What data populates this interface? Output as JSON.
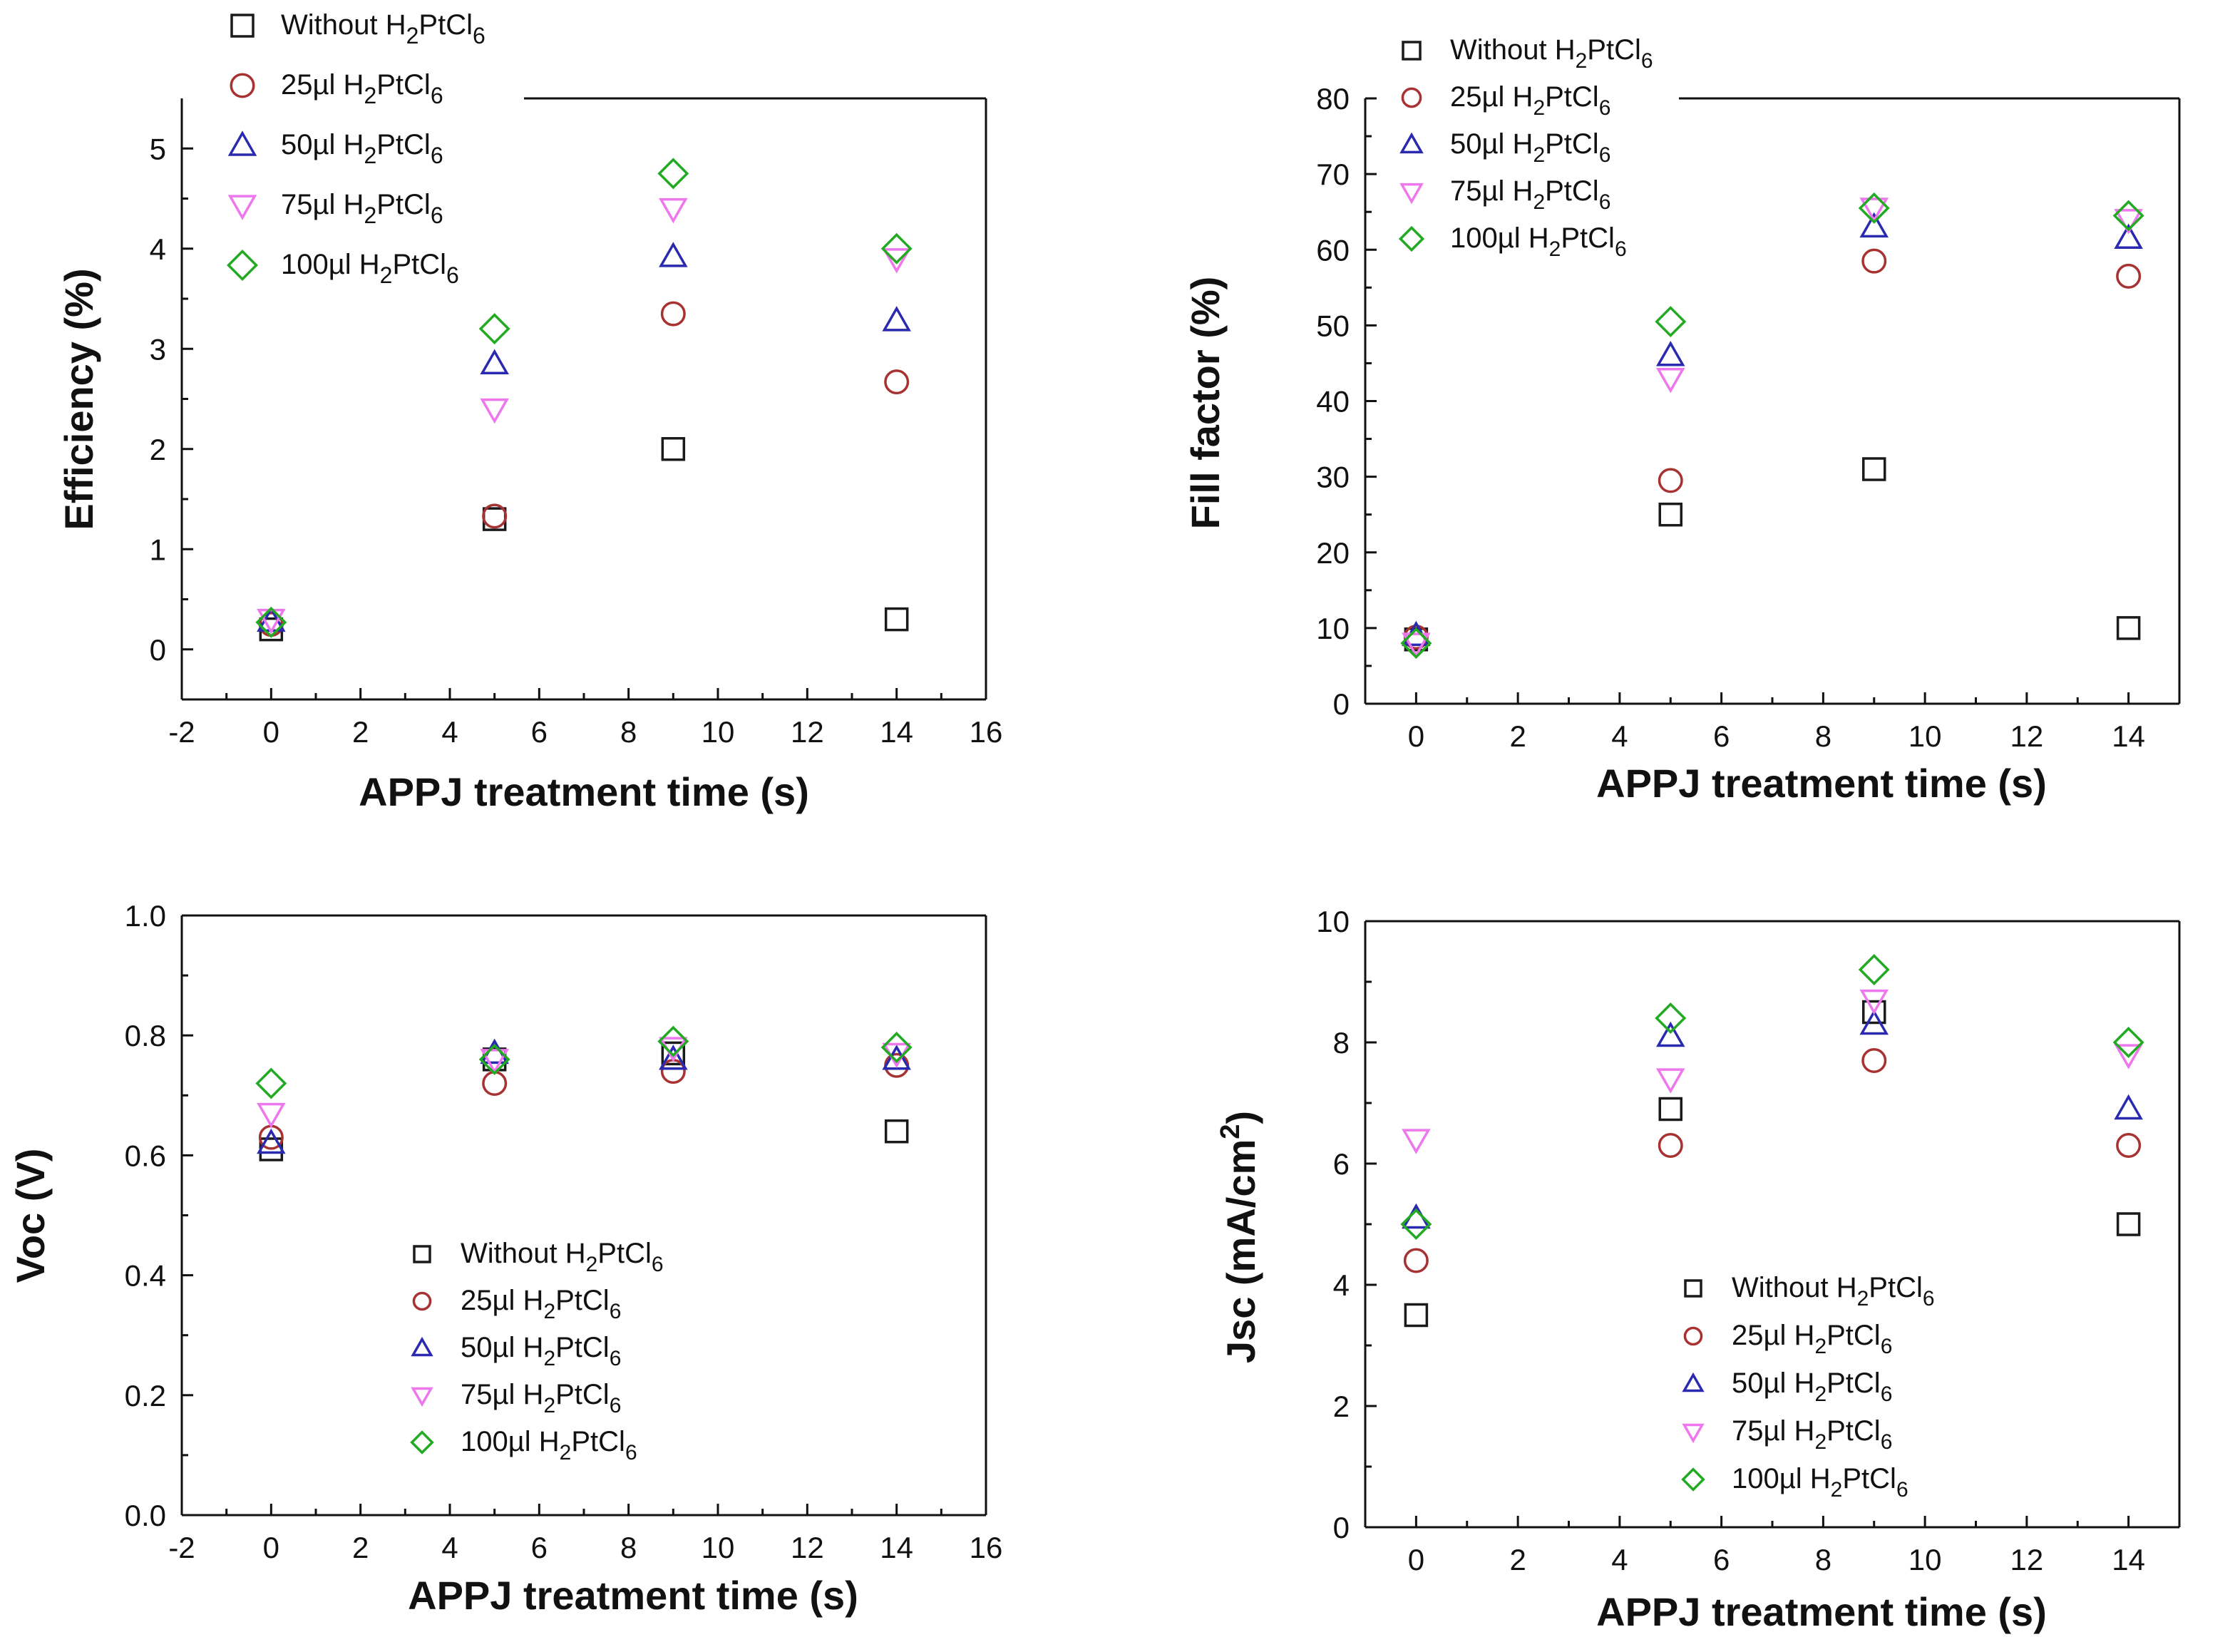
{
  "series_meta": [
    {
      "name": "Without H2PtCl6",
      "marker": "square",
      "color": "#1a1a1a",
      "label_parts": [
        {
          "t": "Without H"
        },
        {
          "t": "2",
          "sub": true
        },
        {
          "t": "PtCl"
        },
        {
          "t": "6",
          "sub": true
        }
      ]
    },
    {
      "name": "25µl H2PtCl6",
      "marker": "circle",
      "color": "#a83232",
      "label_parts": [
        {
          "t": "25µl H"
        },
        {
          "t": "2",
          "sub": true
        },
        {
          "t": "PtCl"
        },
        {
          "t": "6",
          "sub": true
        }
      ]
    },
    {
      "name": "50µl H2PtCl6",
      "marker": "triangle-up",
      "color": "#2a2ab0",
      "label_parts": [
        {
          "t": "50µl H"
        },
        {
          "t": "2",
          "sub": true
        },
        {
          "t": "PtCl"
        },
        {
          "t": "6",
          "sub": true
        }
      ]
    },
    {
      "name": "75µl H2PtCl6",
      "marker": "triangle-down",
      "color": "#ee77ee",
      "label_parts": [
        {
          "t": "75µl H"
        },
        {
          "t": "2",
          "sub": true
        },
        {
          "t": "PtCl"
        },
        {
          "t": "6",
          "sub": true
        }
      ]
    },
    {
      "name": "100µl H2PtCl6",
      "marker": "diamond",
      "color": "#22aa22",
      "label_parts": [
        {
          "t": "100µl H"
        },
        {
          "t": "2",
          "sub": true
        },
        {
          "t": "PtCl"
        },
        {
          "t": "6",
          "sub": true
        }
      ]
    }
  ],
  "chart_data": [
    {
      "id": "efficiency",
      "type": "scatter",
      "xlabel": "APPJ treatment time (s)",
      "ylabel": "Efficiency (%)",
      "xlim": [
        -2,
        16
      ],
      "ylim": [
        -0.5,
        5.5
      ],
      "xticks": [
        -2,
        0,
        2,
        4,
        6,
        8,
        10,
        12,
        14,
        16
      ],
      "yticks": [
        0,
        1,
        2,
        3,
        4,
        5
      ],
      "legend": "top-left",
      "x": [
        0,
        5,
        9,
        14
      ],
      "series": [
        {
          "name": "Without H2PtCl6",
          "values": [
            0.2,
            1.3,
            2.0,
            0.3
          ]
        },
        {
          "name": "25µl H2PtCl6",
          "values": [
            0.25,
            1.33,
            3.35,
            2.67
          ]
        },
        {
          "name": "50µl H2PtCl6",
          "values": [
            0.28,
            2.85,
            3.92,
            3.28
          ]
        },
        {
          "name": "75µl H2PtCl6",
          "values": [
            0.3,
            2.4,
            4.4,
            3.9
          ]
        },
        {
          "name": "100µl H2PtCl6",
          "values": [
            0.27,
            3.2,
            4.75,
            4.0
          ]
        }
      ]
    },
    {
      "id": "fill-factor",
      "type": "scatter",
      "xlabel": "APPJ treatment time (s)",
      "ylabel": "Fill factor (%)",
      "xlim": [
        -1,
        15
      ],
      "ylim": [
        0,
        80
      ],
      "xticks": [
        0,
        2,
        4,
        6,
        8,
        10,
        12,
        14
      ],
      "yticks": [
        0,
        10,
        20,
        30,
        40,
        50,
        60,
        70,
        80
      ],
      "legend": "top-left",
      "x": [
        0,
        5,
        9,
        14
      ],
      "series": [
        {
          "name": "Without H2PtCl6",
          "values": [
            8.5,
            25,
            31,
            10
          ]
        },
        {
          "name": "25µl H2PtCl6",
          "values": [
            8.8,
            29.5,
            58.5,
            56.5
          ]
        },
        {
          "name": "50µl H2PtCl6",
          "values": [
            9,
            46,
            63,
            61.5
          ]
        },
        {
          "name": "75µl H2PtCl6",
          "values": [
            8,
            43,
            65.5,
            64
          ]
        },
        {
          "name": "100µl H2PtCl6",
          "values": [
            8,
            50.5,
            65.5,
            64.5
          ]
        }
      ]
    },
    {
      "id": "voc",
      "type": "scatter",
      "xlabel": "APPJ treatment time (s)",
      "ylabel": "Voc (V)",
      "xlim": [
        -2,
        16
      ],
      "ylim": [
        0,
        1.0
      ],
      "xticks": [
        -2,
        0,
        2,
        4,
        6,
        8,
        10,
        12,
        14,
        16
      ],
      "yticks": [
        0.0,
        0.2,
        0.4,
        0.6,
        0.8,
        1.0
      ],
      "ytick_labels": [
        "0.0",
        "0.2",
        "0.4",
        "0.6",
        "0.8",
        "1.0"
      ],
      "legend": "bottom-center",
      "x": [
        0,
        5,
        9,
        14
      ],
      "series": [
        {
          "name": "Without H2PtCl6",
          "values": [
            0.61,
            0.76,
            0.77,
            0.64
          ]
        },
        {
          "name": "25µl H2PtCl6",
          "values": [
            0.63,
            0.72,
            0.74,
            0.75
          ]
        },
        {
          "name": "50µl H2PtCl6",
          "values": [
            0.62,
            0.77,
            0.76,
            0.76
          ]
        },
        {
          "name": "75µl H2PtCl6",
          "values": [
            0.67,
            0.76,
            0.78,
            0.77
          ]
        },
        {
          "name": "100µl H2PtCl6",
          "values": [
            0.72,
            0.76,
            0.79,
            0.78
          ]
        }
      ]
    },
    {
      "id": "jsc",
      "type": "scatter",
      "xlabel": "APPJ treatment time (s)",
      "ylabel": "Jsc (mA/cm",
      "ylabel_sup": "2",
      "ylabel_end": ")",
      "xlim": [
        -1,
        15
      ],
      "ylim": [
        0,
        10
      ],
      "xticks": [
        0,
        2,
        4,
        6,
        8,
        10,
        12,
        14
      ],
      "yticks": [
        0,
        2,
        4,
        6,
        8,
        10
      ],
      "legend": "bottom-right",
      "x": [
        0,
        5,
        9,
        14
      ],
      "series": [
        {
          "name": "Without H2PtCl6",
          "values": [
            3.5,
            6.9,
            8.5,
            5.0
          ]
        },
        {
          "name": "25µl H2PtCl6",
          "values": [
            4.4,
            6.3,
            7.7,
            6.3
          ]
        },
        {
          "name": "50µl H2PtCl6",
          "values": [
            5.1,
            8.1,
            8.3,
            6.9
          ]
        },
        {
          "name": "75µl H2PtCl6",
          "values": [
            6.4,
            7.4,
            8.7,
            7.8
          ]
        },
        {
          "name": "100µl H2PtCl6",
          "values": [
            5.0,
            8.4,
            9.2,
            8.0
          ]
        }
      ]
    }
  ]
}
